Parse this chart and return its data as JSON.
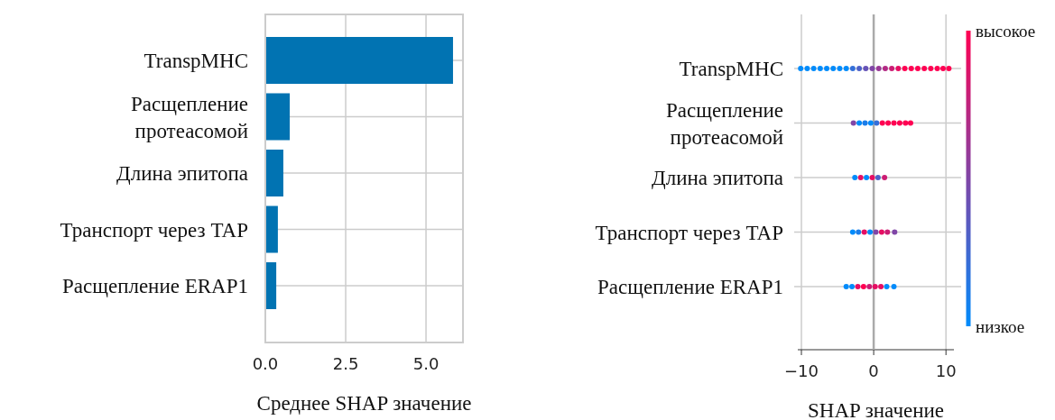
{
  "chart_data": [
    {
      "type": "bar",
      "orientation": "horizontal",
      "categories": [
        "TranspMHC",
        "Расщепление протеасомой",
        "Длина эпитопа",
        "Транспорт через TAP",
        "Расщепление ERAP1"
      ],
      "values": [
        5.84,
        0.76,
        0.56,
        0.39,
        0.34
      ],
      "color": "#0173b2",
      "xlim": [
        0,
        6.15
      ],
      "xticks": [
        {
          "value": 0,
          "label": "0.0"
        },
        {
          "value": 2.5,
          "label": "2.5"
        },
        {
          "value": 5,
          "label": "5.0"
        }
      ],
      "xlabel": "Среднее SHAP значение",
      "grid": true
    },
    {
      "type": "scatter",
      "orientation": "horizontal",
      "categories": [
        "TranspMHC",
        "Расщепление протеасомой",
        "Длина эпитопа",
        "Транспорт через TAP",
        "Расщепление ERAP1"
      ],
      "xlim": [
        -10.5,
        11.1
      ],
      "xticks": [
        {
          "value": -10,
          "label": "−10"
        },
        0,
        10
      ],
      "xlabel": "SHAP значение",
      "grid": true,
      "clim": [
        0,
        1
      ],
      "cticks": [
        {
          "value": 0,
          "label": "низкое"
        },
        {
          "value": 1,
          "label": "высокое"
        }
      ],
      "ref_lines": [
        {
          "axis": "x",
          "value": 0,
          "color": "#aaaaaa"
        }
      ],
      "series": [
        {
          "x": [
            "TranspMHC",
            "TranspMHC",
            "TranspMHC",
            "TranspMHC",
            "TranspMHC",
            "TranspMHC",
            "TranspMHC",
            "TranspMHC",
            "TranspMHC",
            "TranspMHC",
            "TranspMHC",
            "TranspMHC",
            "TranspMHC",
            "TranspMHC",
            "TranspMHC",
            "TranspMHC",
            "TranspMHC",
            "TranspMHC",
            "TranspMHC",
            "TranspMHC",
            "TranspMHC",
            "TranspMHC",
            "TranspMHC",
            "TranspMHC"
          ],
          "values": [
            -10.1,
            -9.2,
            -8.3,
            -7.4,
            -6.5,
            -5.6,
            -4.7,
            -3.8,
            -2.9,
            -2.0,
            -1.1,
            -0.2,
            0.7,
            1.6,
            2.5,
            3.4,
            4.3,
            5.2,
            6.1,
            7.0,
            7.9,
            8.8,
            9.6,
            10.4
          ],
          "colors": [
            "#008bfb",
            "#008bfb",
            "#008bfb",
            "#008bfb",
            "#008bfb",
            "#008bfb",
            "#008bfb",
            "#008bfb",
            "#336fd9",
            "#4d61c8",
            "#6653b7",
            "#8046a7",
            "#993896",
            "#b32a85",
            "#cc1c74",
            "#e60e63",
            "#ff0052",
            "#ff0052",
            "#ff0052",
            "#ff0052",
            "#ff0052",
            "#ff0052",
            "#ff0052",
            "#ff0052"
          ]
        },
        {
          "x": [
            "Расщепление протеасомой",
            "Расщепление протеасомой",
            "Расщепление протеасомой",
            "Расщепление протеасомой",
            "Расщепление протеасомой",
            "Расщепление протеасомой",
            "Расщепление протеасомой",
            "Расщепление протеасомой",
            "Расщепление протеасомой",
            "Расщепление протеасомой",
            "Расщепление протеасомой"
          ],
          "values": [
            -2.8,
            -2.0,
            -1.2,
            -0.4,
            0.4,
            1.2,
            2.0,
            2.8,
            3.6,
            4.4,
            5.1
          ],
          "colors": [
            "#8046a7",
            "#008bfb",
            "#1a7dea",
            "#008bfb",
            "#336fd9",
            "#ff0052",
            "#ff0052",
            "#ff0052",
            "#ff0052",
            "#ff0052",
            "#ff0052"
          ]
        },
        {
          "x": [
            "Длина эпитопа",
            "Длина эпитопа",
            "Длина эпитопа",
            "Длина эпитопа",
            "Длина эпитопа",
            "Длина эпитопа"
          ],
          "values": [
            -2.6,
            -1.8,
            -1.0,
            -0.2,
            0.6,
            1.5
          ],
          "colors": [
            "#008bfb",
            "#e60e63",
            "#008bfb",
            "#e60e63",
            "#4d61c8",
            "#cc1c74"
          ]
        },
        {
          "x": [
            "Транспорт через TAP",
            "Транспорт через TAP",
            "Транспорт через TAP",
            "Транспорт через TAP",
            "Транспорт через TAP",
            "Транспорт через TAP",
            "Транспорт через TAP",
            "Транспорт через TAP"
          ],
          "values": [
            -2.9,
            -2.1,
            -1.3,
            -0.5,
            0.3,
            1.1,
            1.9,
            2.9
          ],
          "colors": [
            "#008bfb",
            "#1a7dea",
            "#e60e63",
            "#008bfb",
            "#8046a7",
            "#e60e63",
            "#cc1c74",
            "#8046a7"
          ]
        },
        {
          "x": [
            "Расщепление ERAP1",
            "Расщепление ERAP1",
            "Расщепление ERAP1",
            "Расщепление ERAP1",
            "Расщепление ERAP1",
            "Расщепление ERAP1",
            "Расщепление ERAP1",
            "Расщепление ERAP1",
            "Расщепление ERAP1"
          ],
          "values": [
            -3.8,
            -3.0,
            -2.2,
            -1.4,
            -0.6,
            0.2,
            1.0,
            1.8,
            2.8
          ],
          "colors": [
            "#008bfb",
            "#008bfb",
            "#e60e63",
            "#ff0052",
            "#cc1c74",
            "#e60e63",
            "#e60e63",
            "#008bfb",
            "#008bfb"
          ]
        }
      ]
    }
  ]
}
